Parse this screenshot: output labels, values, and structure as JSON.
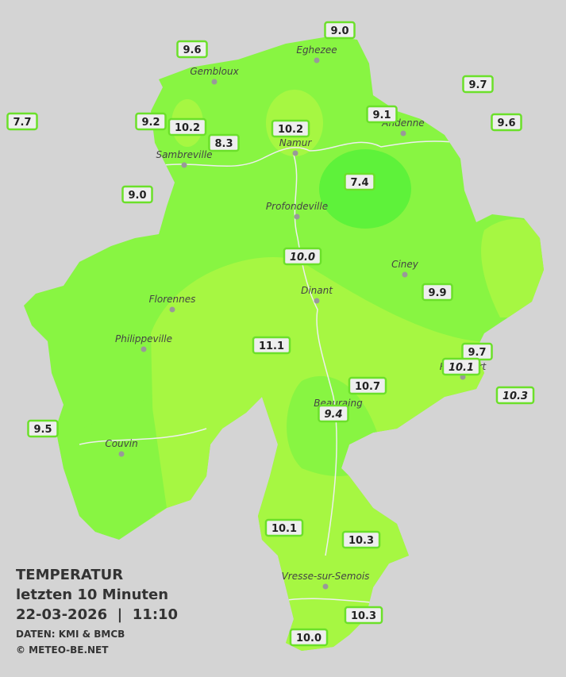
{
  "header": {
    "title": "TEMPERATUR",
    "subtitle": "letzten 10 Minuten",
    "datetime": "22-03-2026  |  11:10",
    "source": "DATEN: KMI & BMCB",
    "copyright": "© METEO-BE.NET"
  },
  "cities": [
    "Eghezee",
    "Gembloux",
    "Andenne",
    "Namur",
    "Sambreville",
    "Profondeville",
    "Ciney",
    "Dinant",
    "Florennes",
    "Philippeville",
    "Beauraing",
    "Rochefort",
    "Couvin",
    "Vresse-sur-Semois"
  ],
  "stations": [
    "9.0",
    "9.6",
    "9.7",
    "7.7",
    "9.2",
    "10.2",
    "10.2",
    "9.1",
    "9.6",
    "8.3",
    "9.0",
    "7.4",
    "10.0",
    "9.9",
    "11.1",
    "9.7",
    "10.1",
    "10.7",
    "10.3",
    "9.5",
    "9.4",
    "10.1",
    "10.3",
    "10.3",
    "10.0"
  ]
}
